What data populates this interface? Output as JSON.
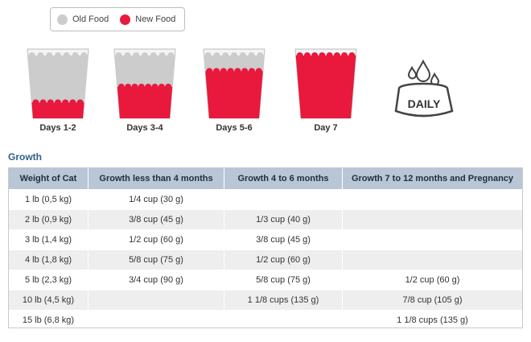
{
  "legend": {
    "old_label": "Old Food",
    "new_label": "New Food",
    "old_color": "#cccccc",
    "new_color": "#e8193c"
  },
  "cups": [
    {
      "label": "Days 1-2",
      "new_fraction": 0.25
    },
    {
      "label": "Days 3-4",
      "new_fraction": 0.5
    },
    {
      "label": "Days 5-6",
      "new_fraction": 0.75
    },
    {
      "label": "Day 7",
      "new_fraction": 1.0
    }
  ],
  "daily_icon": {
    "text": "DAILY",
    "icon": "water-bowl-icon"
  },
  "section_title": "Growth",
  "table": {
    "headers": [
      "Weight of Cat",
      "Growth less than 4 months",
      "Growth 4 to 6 months",
      "Growth 7 to 12 months and Pregnancy"
    ],
    "rows": [
      [
        "1 lb (0,5 kg)",
        "1/4 cup (30 g)",
        "",
        ""
      ],
      [
        "2 lb (0,9 kg)",
        "3/8 cup (45 g)",
        "1/3 cup (40 g)",
        ""
      ],
      [
        "3 lb (1,4 kg)",
        "1/2 cup (60 g)",
        "3/8 cup (45 g)",
        ""
      ],
      [
        "4 lb (1,8 kg)",
        "5/8 cup (75 g)",
        "1/2 cup (60 g)",
        ""
      ],
      [
        "5 lb (2,3 kg)",
        "3/4 cup (90 g)",
        "5/8 cup (75 g)",
        "1/2 cup (60 g)"
      ],
      [
        "10 lb (4,5 kg)",
        "",
        "1 1/8 cups (135 g)",
        "7/8 cup (105 g)"
      ],
      [
        "15 lb (6,8 kg)",
        "",
        "",
        "1 1/8 cups (135 g)"
      ]
    ]
  }
}
